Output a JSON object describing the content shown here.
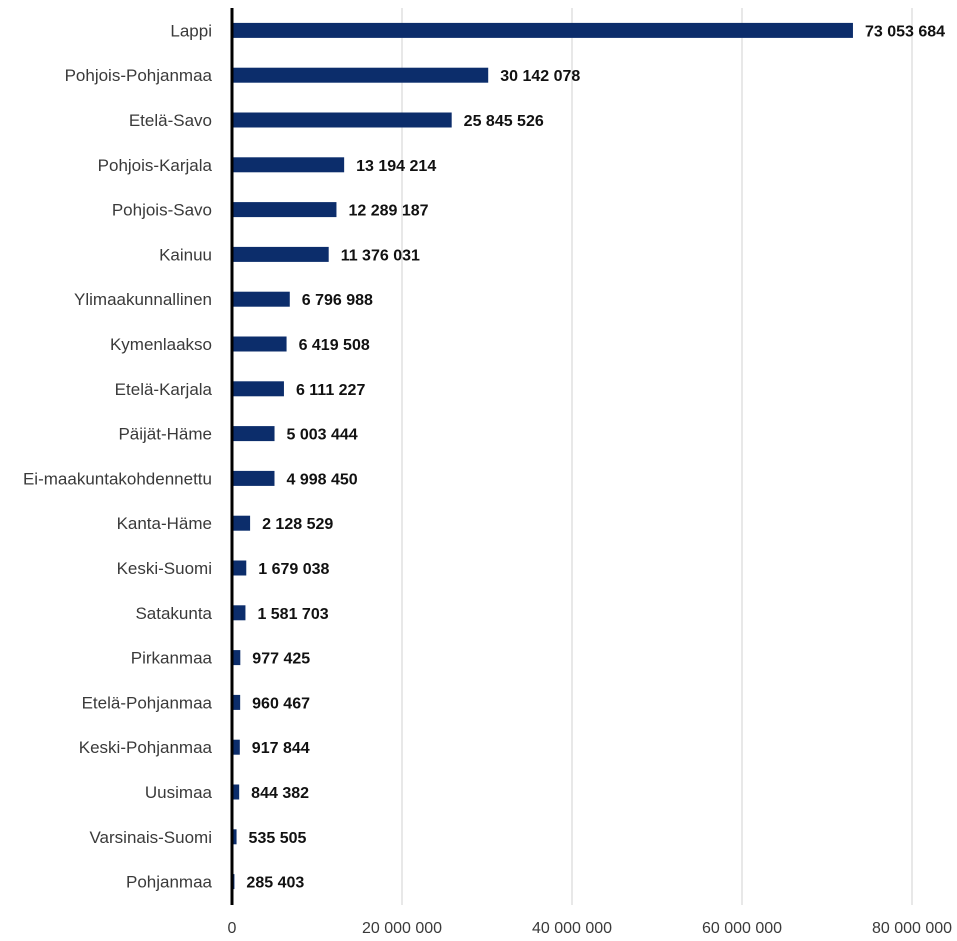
{
  "colors": {
    "bar": "#0c2d6b",
    "grid": "#d9d9d9",
    "axis": "#000000",
    "text": "#3a3a3a",
    "value_text": "#111111"
  },
  "chart_data": {
    "type": "bar",
    "orientation": "horizontal",
    "title": "",
    "xlabel": "",
    "ylabel": "",
    "xlim": [
      0,
      80000000
    ],
    "grid": true,
    "legend": "none",
    "categories": [
      "Lappi",
      "Pohjois-Pohjanmaa",
      "Etelä-Savo",
      "Pohjois-Karjala",
      "Pohjois-Savo",
      "Kainuu",
      "Ylimaakunnallinen",
      "Kymenlaakso",
      "Etelä-Karjala",
      "Päijät-Häme",
      "Ei-maakuntakohdennettu",
      "Kanta-Häme",
      "Keski-Suomi",
      "Satakunta",
      "Pirkanmaa",
      "Etelä-Pohjanmaa",
      "Keski-Pohjanmaa",
      "Uusimaa",
      "Varsinais-Suomi",
      "Pohjanmaa"
    ],
    "values": [
      73053684,
      30142078,
      25845526,
      13194214,
      12289187,
      11376031,
      6796988,
      6419508,
      6111227,
      5003444,
      4998450,
      2128529,
      1679038,
      1581703,
      977425,
      960467,
      917844,
      844382,
      535505,
      285403
    ],
    "value_labels": [
      "73 053 684",
      "30 142 078",
      "25 845 526",
      "13 194 214",
      "12 289 187",
      "11 376 031",
      "6 796 988",
      "6 419 508",
      "6 111 227",
      "5 003 444",
      "4 998 450",
      "2 128 529",
      "1 679 038",
      "1 581 703",
      "977 425",
      "960 467",
      "917 844",
      "844 382",
      "535 505",
      "285 403"
    ],
    "ticks": [
      0,
      20000000,
      40000000,
      60000000,
      80000000
    ],
    "tick_labels": [
      "0",
      "20 000 000",
      "40 000 000",
      "60 000 000",
      "80 000 000"
    ]
  }
}
